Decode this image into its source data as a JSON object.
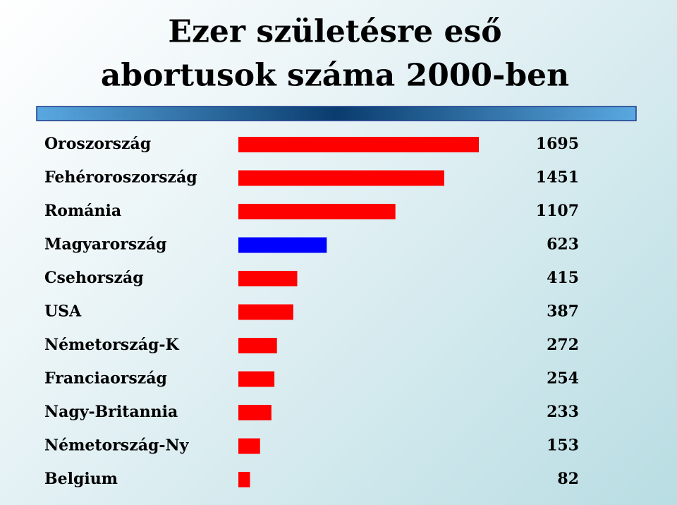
{
  "chart_data": {
    "type": "bar",
    "orientation": "horizontal",
    "title": [
      "Ezer születésre eső",
      "abortusok száma 2000-ben"
    ],
    "categories": [
      "Oroszország",
      "Fehéroroszország",
      "Románia",
      "Magyarország",
      "Csehország",
      "USA",
      "Németország-K",
      "Franciaország",
      "Nagy-Britannia",
      "Németország-Ny",
      "Belgium"
    ],
    "values": [
      1695,
      1451,
      1107,
      623,
      415,
      387,
      272,
      254,
      233,
      153,
      82
    ],
    "colors": [
      "#ff0000",
      "#ff0000",
      "#ff0000",
      "#0000ff",
      "#ff0000",
      "#ff0000",
      "#ff0000",
      "#ff0000",
      "#ff0000",
      "#ff0000",
      "#ff0000"
    ]
  }
}
